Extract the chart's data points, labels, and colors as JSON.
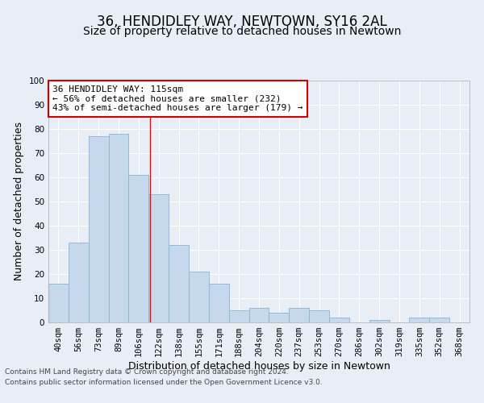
{
  "title": "36, HENDIDLEY WAY, NEWTOWN, SY16 2AL",
  "subtitle": "Size of property relative to detached houses in Newtown",
  "xlabel": "Distribution of detached houses by size in Newtown",
  "ylabel": "Number of detached properties",
  "categories": [
    "40sqm",
    "56sqm",
    "73sqm",
    "89sqm",
    "106sqm",
    "122sqm",
    "138sqm",
    "155sqm",
    "171sqm",
    "188sqm",
    "204sqm",
    "220sqm",
    "237sqm",
    "253sqm",
    "270sqm",
    "286sqm",
    "302sqm",
    "319sqm",
    "335sqm",
    "352sqm",
    "368sqm"
  ],
  "values": [
    16,
    33,
    77,
    78,
    61,
    53,
    32,
    21,
    16,
    5,
    6,
    4,
    6,
    5,
    2,
    0,
    1,
    0,
    2,
    2,
    0
  ],
  "bar_color": "#c5d8ec",
  "bar_edge_color": "#8ab4d4",
  "background_color": "#e8eef5",
  "grid_color": "#ffffff",
  "ylim": [
    0,
    100
  ],
  "yticks": [
    0,
    10,
    20,
    30,
    40,
    50,
    60,
    70,
    80,
    90,
    100
  ],
  "annotation_text": "36 HENDIDLEY WAY: 115sqm\n← 56% of detached houses are smaller (232)\n43% of semi-detached houses are larger (179) →",
  "annotation_box_color": "#ffffff",
  "annotation_box_edge": "#cc0000",
  "red_line_index": 4.5625,
  "footnote_line1": "Contains HM Land Registry data © Crown copyright and database right 2024.",
  "footnote_line2": "Contains public sector information licensed under the Open Government Licence v3.0.",
  "title_fontsize": 12,
  "subtitle_fontsize": 10,
  "axis_label_fontsize": 9,
  "tick_fontsize": 7.5,
  "annotation_fontsize": 8,
  "footnote_fontsize": 6.5
}
